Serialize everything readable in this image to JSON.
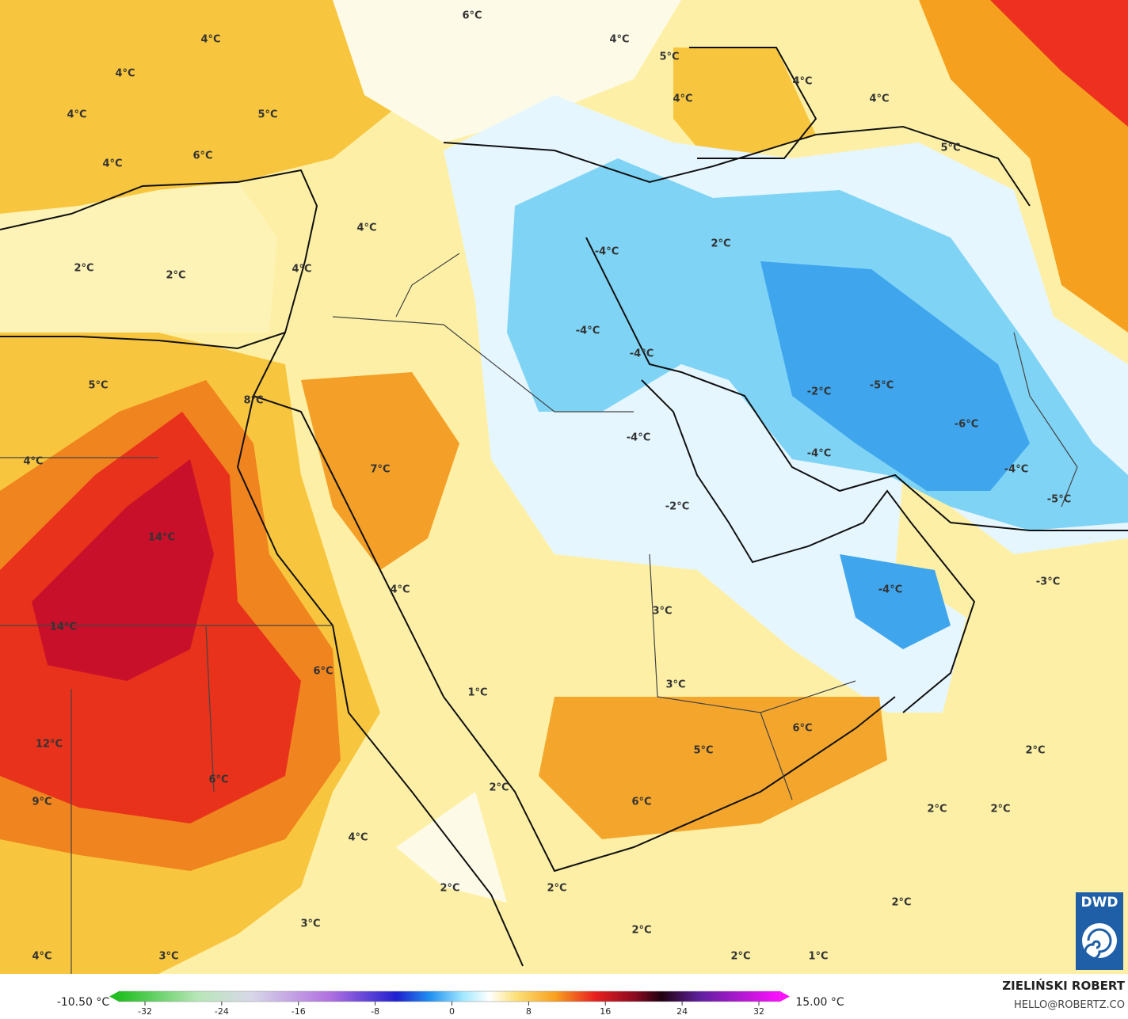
{
  "map_labels": [
    "6°C",
    "4°C",
    "4°C",
    "5°C",
    "4°C",
    "4°C",
    "4°C",
    "4°C",
    "4°C",
    "5°C",
    "5°C",
    "6°C",
    "4°C",
    "4°C",
    "2°C",
    "-4°C",
    "2°C",
    "2°C",
    "4°C",
    "-4°C",
    "-4°C",
    "5°C",
    "-5°C",
    "-2°C",
    "8°C",
    "-6°C",
    "-4°C",
    "-4°C",
    "4°C",
    "7°C",
    "-4°C",
    "-5°C",
    "-2°C",
    "14°C",
    "4°C",
    "-4°C",
    "-3°C",
    "3°C",
    "14°C",
    "6°C",
    "3°C",
    "1°C",
    "12°C",
    "6°C",
    "5°C",
    "2°C",
    "6°C",
    "2°C",
    "9°C",
    "6°C",
    "2°C",
    "2°C",
    "4°C",
    "2°C",
    "2°C",
    "2°C",
    "3°C",
    "2°C",
    "4°C",
    "3°C",
    "2°C",
    "1°C"
  ],
  "colorbar": {
    "min_label": "-10.50 °C",
    "max_label": "15.00 °C",
    "ticks": [
      -32,
      -24,
      -16,
      -8,
      0,
      8,
      16,
      24,
      32
    ]
  },
  "credit": {
    "author": "ZIELIŃSKI ROBERT",
    "contact": "HELLO@ROBERTZ.CO",
    "logo": "DWD"
  }
}
